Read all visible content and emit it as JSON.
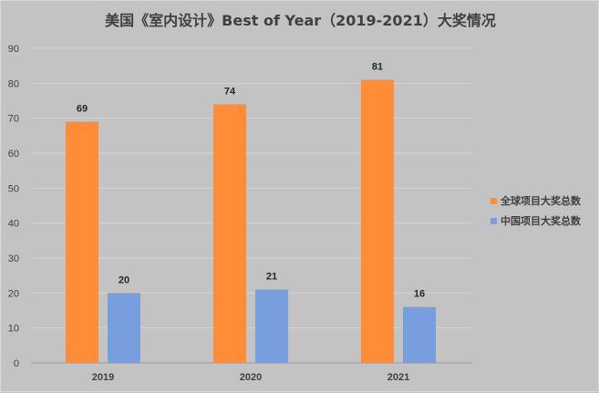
{
  "chart_data": {
    "type": "bar",
    "title": "美国《室内设计》Best of Year（2019-2021）大奖情况",
    "categories": [
      "2019",
      "2020",
      "2021"
    ],
    "series": [
      {
        "name": "全球项目大奖总数",
        "values": [
          69,
          74,
          81
        ],
        "color": "#ff8c37"
      },
      {
        "name": "中国项目大奖总数",
        "values": [
          20,
          21,
          16
        ],
        "color": "#789fdd"
      }
    ],
    "ylim": [
      0,
      90
    ],
    "yticks": [
      0,
      10,
      20,
      30,
      40,
      50,
      60,
      70,
      80,
      90
    ],
    "grid": true,
    "legend_position": "right"
  }
}
